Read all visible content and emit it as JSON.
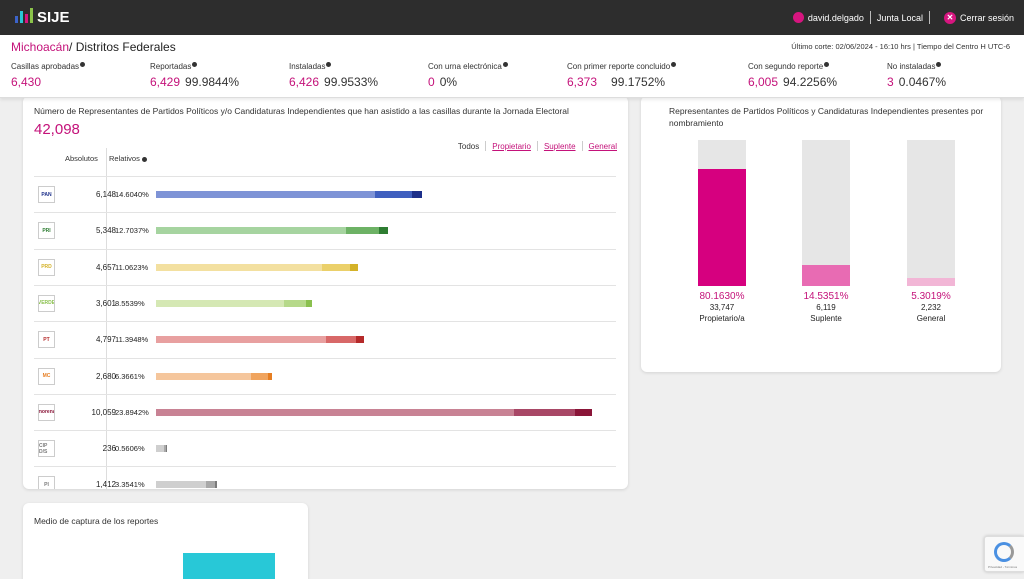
{
  "app": {
    "name": "SIJE"
  },
  "topnav": {
    "user": "david.delgado",
    "role": "Junta Local",
    "logout": "Cerrar sesión"
  },
  "header": {
    "state": "Michoacán",
    "section": "/ Distritos Federales",
    "cutoff": "Último corte: 02/06/2024 - 16:10 hrs  |  Tiempo del Centro H UTC-6"
  },
  "stats": [
    {
      "label": "Casillas aprobadas",
      "value": "6,430",
      "pct": ""
    },
    {
      "label": "Reportadas",
      "value": "6,429",
      "pct": "99.9844%"
    },
    {
      "label": "Instaladas",
      "value": "6,426",
      "pct": "99.9533%"
    },
    {
      "label": "Con urna electrónica",
      "value": "0",
      "pct": "0%"
    },
    {
      "label": "Con primer reporte concluido",
      "value": "6,373",
      "pct": "99.1752%"
    },
    {
      "label": "Con segundo reporte",
      "value": "6,005",
      "pct": "94.2256%"
    },
    {
      "label": "No instaladas",
      "value": "3",
      "pct": "0.0467%"
    }
  ],
  "representatives": {
    "title": "Número de Representantes de Partidos Políticos y/o Candidaturas Independientes que han asistido a las casillas durante la Jornada Electoral",
    "total": "42,098",
    "col_abs": "Absolutos",
    "col_rel": "Relativos",
    "filters": [
      "Todos",
      "Propietario",
      "Suplente",
      "General"
    ],
    "rows": [
      {
        "party_icon": "pan-logo-icon",
        "logo_text": "PAN",
        "abs": "6,148",
        "rel": "14.6040%",
        "pct": 14.604,
        "colors": [
          "#7e93d6",
          "#3f5fbf",
          "#1c2f8a"
        ]
      },
      {
        "party_icon": "pri-logo-icon",
        "logo_text": "PRI",
        "abs": "5,348",
        "rel": "12.7037%",
        "pct": 12.7037,
        "colors": [
          "#a6d4a0",
          "#6db265",
          "#2e7d32"
        ]
      },
      {
        "party_icon": "prd-logo-icon",
        "logo_text": "PRD",
        "abs": "4,657",
        "rel": "11.0623%",
        "pct": 11.0623,
        "colors": [
          "#f3e0a0",
          "#ebd06a",
          "#d4b228"
        ]
      },
      {
        "party_icon": "pvem-logo-icon",
        "logo_text": "VERDE",
        "abs": "3,601",
        "rel": "8.5539%",
        "pct": 8.5539,
        "colors": [
          "#d5e8b4",
          "#b6d98a",
          "#8ac04e"
        ]
      },
      {
        "party_icon": "pt-logo-icon",
        "logo_text": "PT",
        "abs": "4,797",
        "rel": "11.3948%",
        "pct": 11.3948,
        "colors": [
          "#e8a0a0",
          "#d86868",
          "#b52a2a"
        ]
      },
      {
        "party_icon": "mc-logo-icon",
        "logo_text": "MC",
        "abs": "2,680",
        "rel": "6.3661%",
        "pct": 6.3661,
        "colors": [
          "#f5c69c",
          "#f0a45e",
          "#e67e22"
        ]
      },
      {
        "party_icon": "morena-logo-icon",
        "logo_text": "morena",
        "abs": "10,059",
        "rel": "23.8942%",
        "pct": 23.8942,
        "colors": [
          "#c88294",
          "#a84766",
          "#8a1538"
        ]
      },
      {
        "party_icon": "independent-logo-icon",
        "logo_text": "CIP D/S",
        "abs": "236",
        "rel": "0.5606%",
        "pct": 0.5606,
        "colors": [
          "#cfcfcf",
          "#a8a8a8",
          "#7a7a7a"
        ]
      },
      {
        "party_icon": "candidate-logo-icon",
        "logo_text": "PI",
        "abs": "1,412",
        "rel": "3.3541%",
        "pct": 3.3541,
        "colors": [
          "#cfcfcf",
          "#a8a8a8",
          "#7a7a7a"
        ]
      }
    ]
  },
  "appointment": {
    "title": "Representantes de Partidos Políticos y Candidaturas Independientes presentes por nombramiento",
    "bars": [
      {
        "pct_label": "80.1630%",
        "pct": 80.163,
        "count": "33,747",
        "label": "Propietario/a",
        "color": "#d6007f"
      },
      {
        "pct_label": "14.5351%",
        "pct": 14.5351,
        "count": "6,119",
        "label": "Suplente",
        "color": "#e86bb3"
      },
      {
        "pct_label": "5.3019%",
        "pct": 5.3019,
        "count": "2,232",
        "label": "General",
        "color": "#f2b6d6"
      }
    ]
  },
  "capture": {
    "title": "Medio de captura de los reportes"
  },
  "recaptcha": {
    "text": "Privacidad - Términos"
  },
  "colors": {
    "accent": "#c4127a",
    "topbar": "#2d2d2d"
  }
}
